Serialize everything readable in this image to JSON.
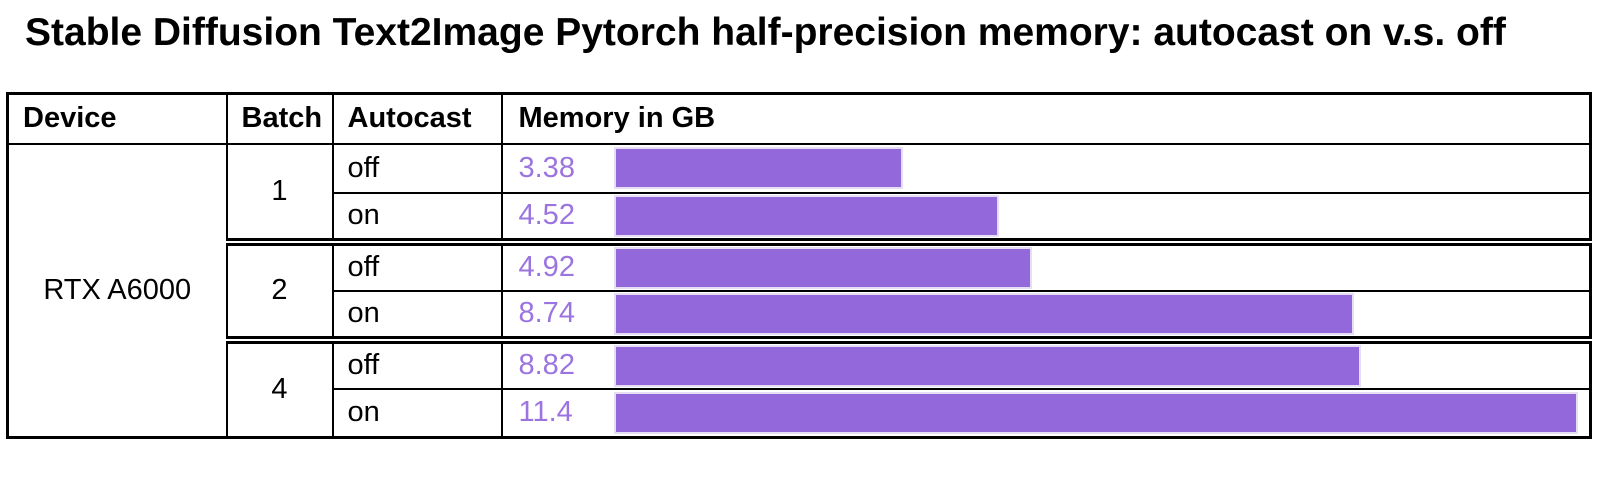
{
  "title": "Stable Diffusion Text2Image Pytorch half-precision memory: autocast on v.s. off",
  "table": {
    "headers": [
      "Device",
      "Batch",
      "Autocast",
      "Memory in GB"
    ],
    "device": "RTX A6000",
    "groups": [
      {
        "batch": "1",
        "rows": [
          {
            "autocast": "off",
            "value": "3.38"
          },
          {
            "autocast": "on",
            "value": "4.52"
          }
        ]
      },
      {
        "batch": "2",
        "rows": [
          {
            "autocast": "off",
            "value": "4.92"
          },
          {
            "autocast": "on",
            "value": "8.74"
          }
        ]
      },
      {
        "batch": "4",
        "rows": [
          {
            "autocast": "off",
            "value": "8.82"
          },
          {
            "autocast": "on",
            "value": "11.4"
          }
        ]
      }
    ]
  },
  "chart_data": {
    "type": "bar",
    "title": "Stable Diffusion Text2Image Pytorch half-precision memory: autocast on v.s. off",
    "categories": [
      "RTX A6000 / batch 1 / autocast off",
      "RTX A6000 / batch 1 / autocast on",
      "RTX A6000 / batch 2 / autocast off",
      "RTX A6000 / batch 2 / autocast on",
      "RTX A6000 / batch 4 / autocast off",
      "RTX A6000 / batch 4 / autocast on"
    ],
    "values": [
      3.38,
      4.52,
      4.92,
      8.74,
      8.82,
      11.4
    ],
    "xlabel": "Memory in GB",
    "xlim": [
      0,
      11.65
    ],
    "orientation": "horizontal",
    "grid": false,
    "legend": "none",
    "bar_color": "#9268db",
    "bar_edge_color": "#e5def5",
    "value_label_color": "#9b74e0",
    "border_color": "#000000",
    "background": "#ffffff"
  }
}
